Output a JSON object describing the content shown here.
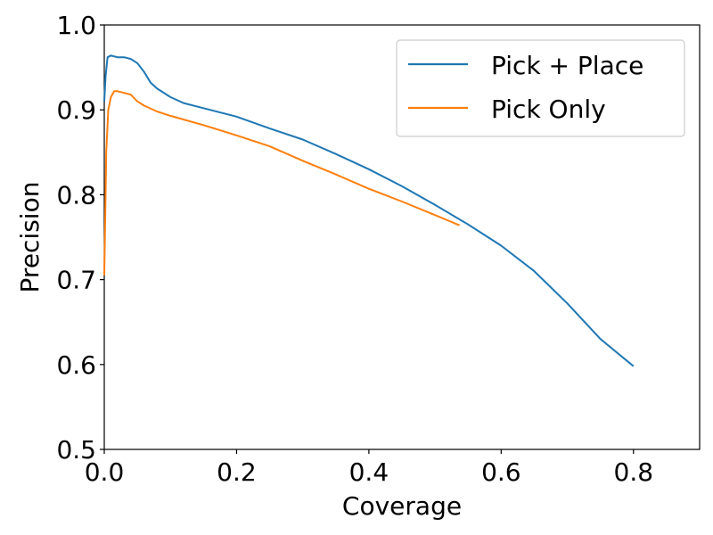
{
  "chart_data": {
    "type": "line",
    "title": "",
    "xlabel": "Coverage",
    "ylabel": "Precision",
    "xlim": [
      0.0,
      0.9
    ],
    "ylim": [
      0.5,
      1.0
    ],
    "x_ticks": [
      0.0,
      0.2,
      0.4,
      0.6,
      0.8
    ],
    "x_tick_labels": [
      "0.0",
      "0.2",
      "0.4",
      "0.6",
      "0.8"
    ],
    "y_ticks": [
      0.5,
      0.6,
      0.7,
      0.8,
      0.9,
      1.0
    ],
    "y_tick_labels": [
      "0.5",
      "0.6",
      "0.7",
      "0.8",
      "0.9",
      "1.0"
    ],
    "grid": false,
    "legend_position": "top-right",
    "series": [
      {
        "name": "Pick + Place",
        "color": "#1f77b4",
        "points": [
          [
            0.0,
            0.91
          ],
          [
            0.002,
            0.94
          ],
          [
            0.005,
            0.962
          ],
          [
            0.01,
            0.964
          ],
          [
            0.02,
            0.962
          ],
          [
            0.03,
            0.962
          ],
          [
            0.04,
            0.96
          ],
          [
            0.05,
            0.955
          ],
          [
            0.06,
            0.945
          ],
          [
            0.07,
            0.932
          ],
          [
            0.08,
            0.925
          ],
          [
            0.1,
            0.915
          ],
          [
            0.12,
            0.908
          ],
          [
            0.15,
            0.902
          ],
          [
            0.2,
            0.892
          ],
          [
            0.25,
            0.878
          ],
          [
            0.3,
            0.865
          ],
          [
            0.35,
            0.848
          ],
          [
            0.4,
            0.83
          ],
          [
            0.45,
            0.81
          ],
          [
            0.5,
            0.788
          ],
          [
            0.55,
            0.765
          ],
          [
            0.6,
            0.74
          ],
          [
            0.65,
            0.71
          ],
          [
            0.7,
            0.672
          ],
          [
            0.75,
            0.63
          ],
          [
            0.8,
            0.598
          ]
        ]
      },
      {
        "name": "Pick Only",
        "color": "#ff7f0e",
        "points": [
          [
            0.0,
            0.705
          ],
          [
            0.001,
            0.75
          ],
          [
            0.003,
            0.85
          ],
          [
            0.006,
            0.9
          ],
          [
            0.01,
            0.915
          ],
          [
            0.015,
            0.922
          ],
          [
            0.02,
            0.922
          ],
          [
            0.03,
            0.92
          ],
          [
            0.04,
            0.918
          ],
          [
            0.05,
            0.91
          ],
          [
            0.06,
            0.905
          ],
          [
            0.08,
            0.898
          ],
          [
            0.1,
            0.893
          ],
          [
            0.15,
            0.882
          ],
          [
            0.2,
            0.87
          ],
          [
            0.25,
            0.857
          ],
          [
            0.3,
            0.84
          ],
          [
            0.35,
            0.824
          ],
          [
            0.4,
            0.807
          ],
          [
            0.45,
            0.792
          ],
          [
            0.5,
            0.776
          ],
          [
            0.537,
            0.764
          ]
        ]
      }
    ]
  }
}
